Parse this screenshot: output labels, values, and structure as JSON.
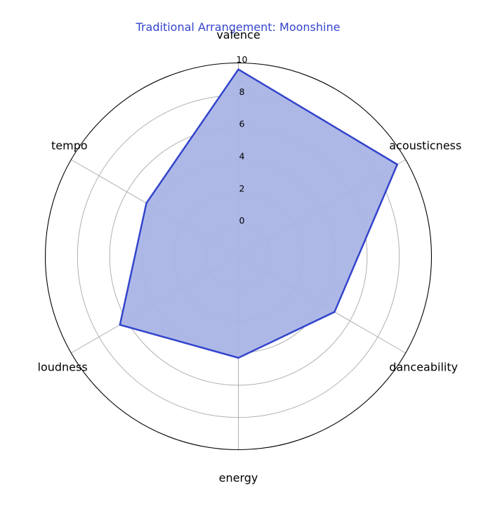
{
  "chart_data": {
    "type": "radar",
    "title": "Traditional Arrangement: Moonshine",
    "categories": [
      "valence",
      "acousticness",
      "danceability",
      "energy",
      "loudness",
      "tempo"
    ],
    "series": [
      {
        "values": [
          9.6,
          9.4,
          4.9,
          4.3,
          6.5,
          4.6
        ]
      }
    ],
    "rticks": [
      "0",
      "2",
      "4",
      "6",
      "8",
      "10"
    ],
    "rlim": [
      -2,
      10
    ],
    "grid": true,
    "colors": {
      "title": "#3344cc",
      "line": "#3344cc",
      "fill": "#aab4e6",
      "grid": "#b0b0b0",
      "outer_circle": "#000000"
    }
  }
}
